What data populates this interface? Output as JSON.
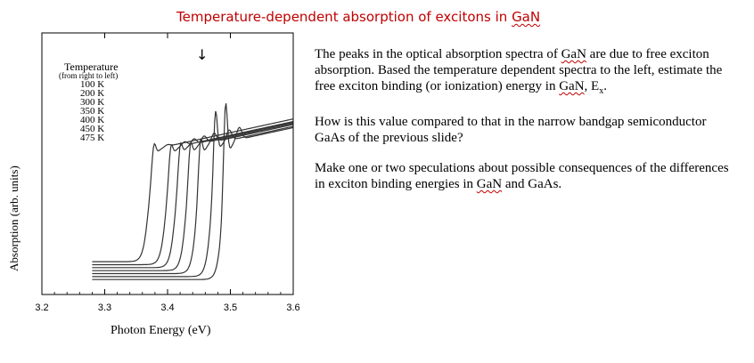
{
  "slide": {
    "title_prefix": "Temperature-dependent absorption of excitons in ",
    "title_gan": "GaN"
  },
  "paragraphs": {
    "p1_a": "The peaks in the optical absorption spectra of ",
    "p1_gan1": "GaN",
    "p1_b": " are due to free exciton absorption. Based the temperature dependent spectra to the left, estimate the free exciton binding (or ionization) energy in ",
    "p1_gan2": "GaN",
    "p1_c": ", E",
    "p1_sub": "x",
    "p1_d": ".",
    "p2": "How is this value compared to that in the narrow bandgap semiconductor GaAs of the previous slide?",
    "p3_a": "Make one or two speculations about possible consequences of the differences in exciton binding energies in ",
    "p3_gan": "GaN",
    "p3_b": " and GaAs."
  },
  "arrow": "↓",
  "chart_data": {
    "type": "line",
    "xlabel": "Photon Energy (eV)",
    "ylabel": "Absorption (arb. units)",
    "xlim": [
      3.2,
      3.6
    ],
    "xticks": [
      "3.2",
      "3.3",
      "3.4",
      "3.5",
      "3.6"
    ],
    "legend_title": "Temperature",
    "legend_subtitle": "(from right to left)",
    "legend_placement": "top-left",
    "series": [
      {
        "name": "100 K",
        "edge": 3.488,
        "peak_x": 3.492,
        "peak_y": 0.92
      },
      {
        "name": "200 K",
        "edge": 3.47,
        "peak_x": 3.476,
        "peak_y": 0.84
      },
      {
        "name": "300 K",
        "edge": 3.447,
        "peak_x": 3.452,
        "peak_y": 0.74
      },
      {
        "name": "350 K",
        "edge": 3.43,
        "peak_x": 3.436,
        "peak_y": 0.7
      },
      {
        "name": "400 K",
        "edge": 3.413,
        "peak_x": 3.42,
        "peak_y": 0.68
      },
      {
        "name": "450 K",
        "edge": 3.398,
        "peak_x": 3.405,
        "peak_y": 0.67
      },
      {
        "name": "475 K",
        "edge": 3.37,
        "peak_x": 3.378,
        "peak_y": 0.66
      }
    ]
  }
}
